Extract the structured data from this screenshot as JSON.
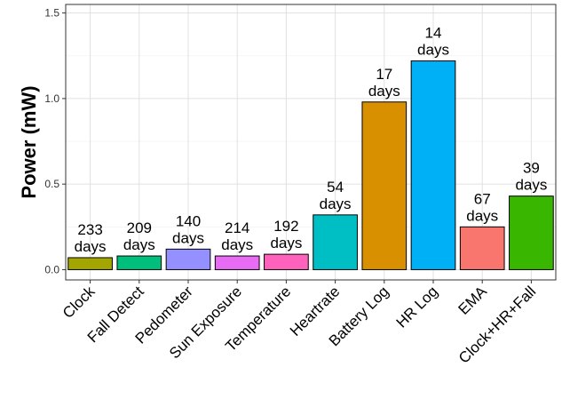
{
  "chart_data": {
    "type": "bar",
    "title": "",
    "xlabel": "",
    "ylabel": "Power (mW)",
    "ylim": [
      -0.06,
      1.55
    ],
    "yticks": [
      0.0,
      0.5,
      1.0,
      1.5
    ],
    "ytick_labels": [
      "0.0",
      "0.5",
      "1.0",
      "1.5"
    ],
    "grid": true,
    "legend": "none",
    "categories": [
      "Clock",
      "Fall Detect",
      "Pedometer",
      "Sun Exposure",
      "Temperature",
      "Heartrate",
      "Battery Log",
      "HR Log",
      "EMA",
      "Clock+HR+Fall"
    ],
    "values": [
      0.07,
      0.08,
      0.12,
      0.08,
      0.09,
      0.32,
      0.98,
      1.22,
      0.25,
      0.43
    ],
    "data_labels": [
      [
        "233",
        "days"
      ],
      [
        "209",
        "days"
      ],
      [
        "140",
        "days"
      ],
      [
        "214",
        "days"
      ],
      [
        "192",
        "days"
      ],
      [
        "54",
        "days"
      ],
      [
        "17",
        "days"
      ],
      [
        "14",
        "days"
      ],
      [
        "67",
        "days"
      ],
      [
        "39",
        "days"
      ]
    ],
    "colors": [
      "#A3A500",
      "#00BF7D",
      "#9590FF",
      "#E76BF3",
      "#FF62BC",
      "#00BFC4",
      "#D89000",
      "#00B0F6",
      "#F8766D",
      "#39B600"
    ]
  }
}
